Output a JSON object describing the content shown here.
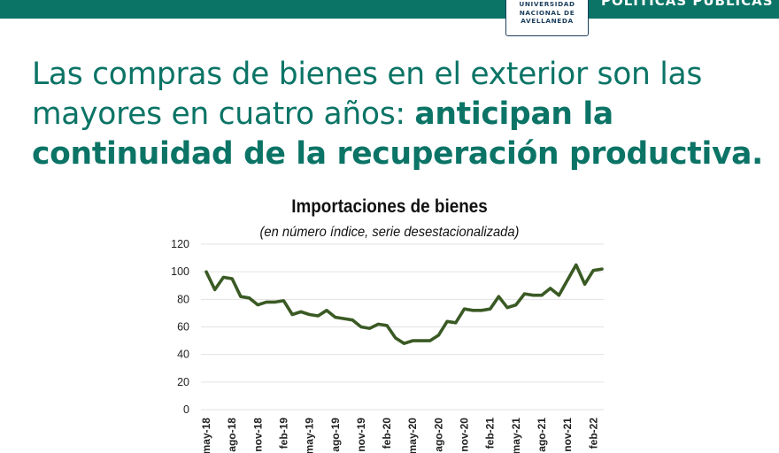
{
  "header": {
    "logo_lines": [
      "UNIVERSIDAD",
      "NACIONAL DE",
      "AVELLANEDA"
    ],
    "section_tag": "POLÍTICAS PÚBLICAS"
  },
  "headline": {
    "normal": "Las compras de bienes en el exterior son las mayores en cuatro años: ",
    "bold": "anticipan la continuidad de la recuperación productiva."
  },
  "colors": {
    "brand": "#0b7466",
    "line": "#3a5a24",
    "grid": "#e3e3e3"
  },
  "chart_data": {
    "type": "line",
    "title": "Importaciones de bienes",
    "subtitle": "(en número índice, serie desestacionalizada)",
    "ylim": [
      0,
      120
    ],
    "yticks": [
      0,
      20,
      40,
      60,
      80,
      100,
      120
    ],
    "grid": true,
    "x_labels": [
      "may-18",
      "ago-18",
      "nov-18",
      "feb-19",
      "may-19",
      "ago-19",
      "nov-19",
      "feb-20",
      "may-20",
      "ago-20",
      "nov-20",
      "feb-21",
      "may-21",
      "ago-21",
      "nov-21",
      "feb-22"
    ],
    "x_label_every": 3,
    "series": [
      {
        "values": [
          100,
          87,
          96,
          95,
          82,
          81,
          76,
          78,
          78,
          79,
          69,
          71,
          69,
          68,
          72,
          67,
          66,
          65,
          60,
          59,
          62,
          61,
          52,
          48,
          50,
          50,
          50,
          54,
          64,
          63,
          73,
          72,
          72,
          73,
          82,
          74,
          76,
          84,
          83,
          83,
          88,
          83,
          94,
          105,
          91,
          101,
          102
        ]
      }
    ]
  }
}
